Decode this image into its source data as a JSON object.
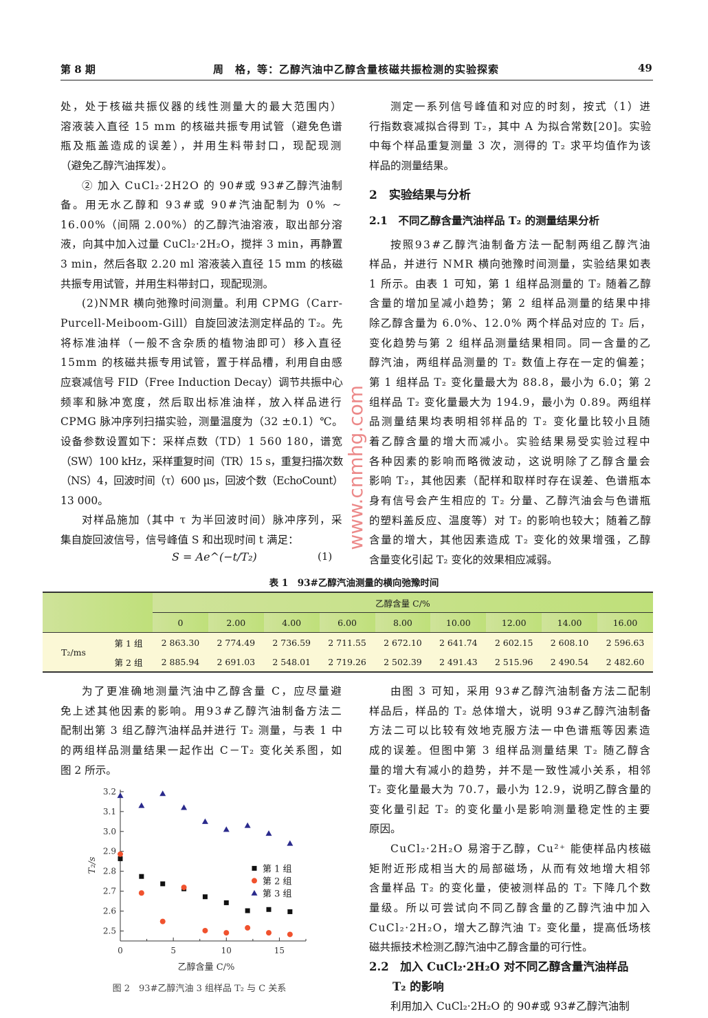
{
  "header": {
    "issue": "第 8 期",
    "title": "周　格，等：乙醇汽油中乙醇含量核磁共振检测的实验探索",
    "page": "49"
  },
  "watermark": "www.cnmhg.com",
  "left_top": [
    {
      "indent": false,
      "lines": [
        "处，处于核磁共振仪器的线性测量大的最大范围内）",
        "溶液装入直径 15 mm 的核磁共振专用试管（避免色谱",
        "瓶及瓶盖造成的误差），并用生料带封口，现配现测",
        "（避免乙醇汽油挥发）。"
      ]
    },
    {
      "indent": true,
      "lines": [
        "② 加入 CuCl₂·2H2O 的 90#或 93#乙醇汽油制",
        "备。用无水乙醇和 93#或 90#汽油配制为 0% ~",
        "16.00%（间隔 2.00%）的乙醇汽油溶液，取出部分溶",
        "液，向其中加入过量 CuCl₂·2H₂O，搅拌 3 min，再静置",
        "3 min，然后各取 2.20 ml 溶液装入直径 15 mm 的核磁",
        "共振专用试管，并用生料带封口，现配现测。"
      ]
    },
    {
      "indent": true,
      "lines": [
        "(2)NMR 横向弛豫时间测量。利用 CPMG（Carr-",
        "Purcell-Meiboom-Gill）自旋回波法测定样品的 T₂。先",
        "将标准油样（一般不含杂质的植物油即可）移入直径",
        "15mm 的核磁共振专用试管，置于样品槽，利用自由感",
        "应衰减信号 FID（Free Induction Decay）调节共振中心",
        "频率和脉冲宽度，然后取出标准油样，放入样品进行",
        "CPMG 脉冲序列扫描实验，测量温度为（32 ±0.1）℃。",
        "设备参数设置如下：采样点数（TD）1 560 180，谱宽",
        "（SW）100 kHz，采样重复时间（TR）15 s，重复扫描次数",
        "（NS）4，回波时间（τ）600 μs，回波个数（EchoCount）",
        "13 000。"
      ]
    },
    {
      "indent": true,
      "lines": [
        "对样品施加（其中 τ 为半回波时间）脉冲序列，采",
        "集自旋回波信号，信号峰值 S 和出现时间 t 满足："
      ]
    }
  ],
  "formula": {
    "text": "S = Ae^(−t/T₂)",
    "number": "(1)"
  },
  "right_top": [
    {
      "indent": true,
      "lines": [
        "测定一系列信号峰值和对应的时刻，按式（1）进",
        "行指数衰减拟合得到 T₂，其中 A 为拟合常数[20]。实验",
        "中每个样品重复测量 3 次，测得的 T₂ 求平均值作为该",
        "样品的测量结果。"
      ]
    }
  ],
  "section2": "2　实验结果与分析",
  "section21": "2.1　不同乙醇含量汽油样品 T₂ 的测量结果分析",
  "right_mid": [
    {
      "indent": true,
      "lines": [
        "按照93#乙醇汽油制备方法一配制两组乙醇汽油",
        "样品，并进行 NMR 横向弛豫时间测量，实验结果如表",
        "1 所示。由表 1 可知，第 1 组样品测量的 T₂ 随着乙醇",
        "含量的增加呈减小趋势；第 2 组样品测量的结果中排",
        "除乙醇含量为 6.0%、12.0% 两个样品对应的 T₂ 后，",
        "变化趋势与第 2 组样品测量结果相同。同一含量的乙",
        "醇汽油，两组样品测量的 T₂ 数值上存在一定的偏差；",
        "第 1 组样品 T₂ 变化量最大为 88.8，最小为 6.0；第 2",
        "组样品 T₂ 变化量最大为 194.9，最小为 0.89。两组样",
        "品测量结果均表明相邻样品的 T₂ 变化量比较小且随",
        "着乙醇含量的增大而减小。实验结果易受实验过程中",
        "各种因素的影响而略微波动，这说明除了乙醇含量会",
        "影响 T₂，其他因素（配样和取样时存在误差、色谱瓶本",
        "身有信号会产生相应的 T₂ 分量、乙醇汽油会与色谱瓶",
        "的塑料盖反应、温度等）对 T₂ 的影响也较大；随着乙醇",
        "含量的增大，其他因素造成 T₂ 变化的效果增强，乙醇",
        "含量变化引起 T₂ 变化的效果相应减弱。"
      ]
    }
  ],
  "table": {
    "caption": "表 1　93#乙醇汽油测量的横向弛豫时间",
    "group_header": "乙醇含量 C/%",
    "columns": [
      "0",
      "2.00",
      "4.00",
      "6.00",
      "8.00",
      "10.00",
      "12.00",
      "14.00",
      "16.00"
    ],
    "row_label": "T₂/ms",
    "rows": [
      {
        "label": "第 1 组",
        "values": [
          "2 863.30",
          "2 774.49",
          "2 736.59",
          "2 711.55",
          "2 672.10",
          "2 641.74",
          "2 602.15",
          "2 608.10",
          "2 596.63"
        ]
      },
      {
        "label": "第 2 组",
        "values": [
          "2 885.94",
          "2 691.03",
          "2 548.01",
          "2 719.26",
          "2 502.39",
          "2 491.43",
          "2 515.96",
          "2 490.54",
          "2 482.60"
        ]
      }
    ]
  },
  "left_bottom": [
    {
      "indent": true,
      "lines": [
        "为了更准确地测量汽油中乙醇含量 C，应尽量避",
        "免上述其他因素的影响。用93#乙醇汽油制备方法二",
        "配制出第 3 组乙醇汽油样品并进行 T₂ 测量，与表 1 中",
        "的两组样品测量结果一起作出 C－T₂ 变化关系图，如",
        "图 2 所示。"
      ]
    }
  ],
  "right_bottom": [
    {
      "indent": true,
      "lines": [
        "由图 3 可知，采用 93#乙醇汽油制备方法二配制",
        "样品后，样品的 T₂ 总体增大，说明 93#乙醇汽油制备",
        "方法二可以比较有效地克服方法一中色谱瓶等因素造",
        "成的误差。但图中第 3 组样品测量结果 T₂ 随乙醇含",
        "量的增大有减小的趋势，并不是一致性减小关系，相邻",
        "T₂ 变化量最大为 70.7，最小为 12.9，说明乙醇含量的",
        "变化量引起 T₂ 的变化量小是影响测量稳定性的主要",
        "原因。"
      ]
    },
    {
      "indent": true,
      "lines": [
        "CuCl₂·2H₂O 易溶于乙醇，Cu²⁺ 能使样品内核磁",
        "矩附近形成相当大的局部磁场，从而有效地增大相邻",
        "含量样品 T₂ 的变化量，使被测样品的 T₂ 下降几个数",
        "量级。所以可尝试向不同乙醇含量的乙醇汽油中加入",
        "CuCl₂·2H₂O，增大乙醇汽油 T₂ 变化量，提高低场核",
        "磁共振技术检测乙醇汽油中乙醇含量的可行性。"
      ]
    }
  ],
  "section22": [
    "2.2　加入 CuCl₂·2H₂O 对不同乙醇含量汽油样品",
    "T₂ 的影响"
  ],
  "right_last": [
    {
      "indent": true,
      "lines": [
        "利用加入 CuCl₂·2H₂O 的 90#或 93#乙醇汽油制"
      ]
    }
  ],
  "chart_data": {
    "type": "scatter",
    "caption": "图 2　93#乙醇汽油 3 组样品 T₂ 与 C 关系",
    "xlabel": "乙醇含量 C/%",
    "ylabel": "T₂/s",
    "xlim": [
      0,
      17.5
    ],
    "ylim": [
      2.45,
      3.21
    ],
    "xticks": [
      "0",
      "5",
      "10",
      "15"
    ],
    "yticks": [
      "2.5",
      "2.6",
      "2.7",
      "2.8",
      "2.9",
      "3.0",
      "3.1",
      "3.2"
    ],
    "legend_position": "right",
    "x": [
      0,
      2,
      4,
      6,
      8,
      10,
      12,
      14,
      16
    ],
    "series": [
      {
        "name": "第 1 组",
        "marker": "square",
        "color": "#111111",
        "values": [
          2.863,
          2.774,
          2.737,
          2.712,
          2.672,
          2.642,
          2.602,
          2.608,
          2.597
        ]
      },
      {
        "name": "第 2 组",
        "marker": "circle",
        "color": "#f0522e",
        "values": [
          2.886,
          2.691,
          2.548,
          2.719,
          2.502,
          2.491,
          2.516,
          2.491,
          2.483
        ]
      },
      {
        "name": "第 3 组",
        "marker": "triangle",
        "color": "#2a2a8c",
        "values": [
          3.18,
          3.13,
          3.19,
          3.12,
          3.05,
          3.01,
          3.03,
          2.99,
          2.94
        ]
      }
    ]
  }
}
